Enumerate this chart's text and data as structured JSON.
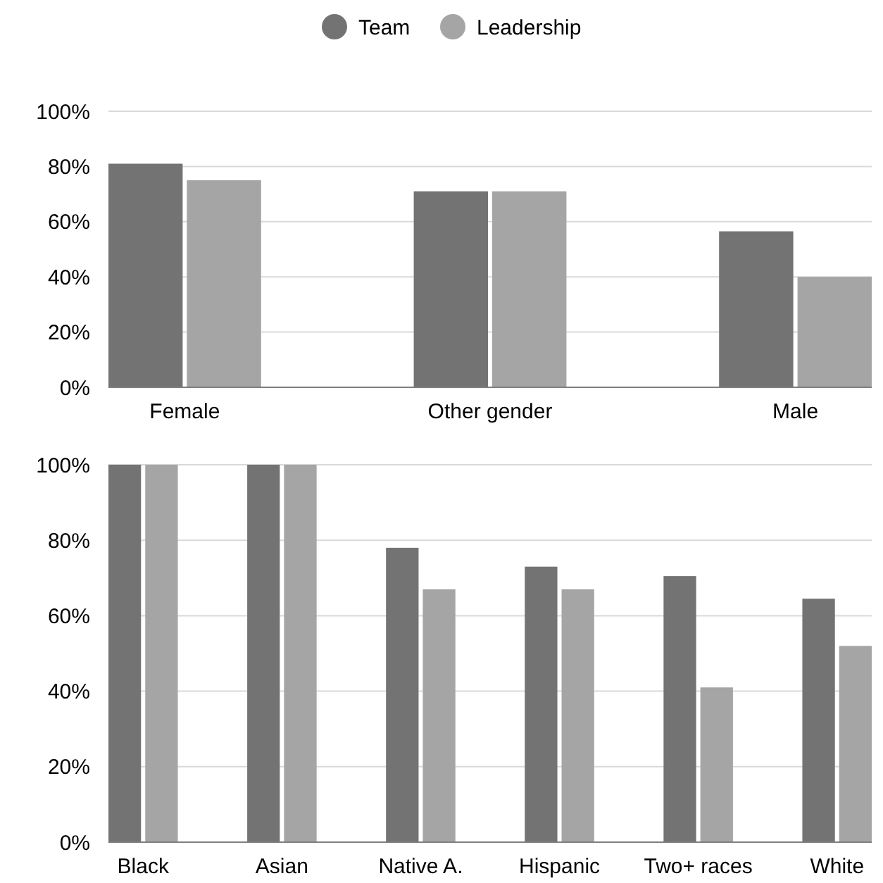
{
  "chart_data": [
    {
      "type": "bar",
      "categories": [
        "Female",
        "Other gender",
        "Male"
      ],
      "series": [
        {
          "name": "Team",
          "color": "#737373",
          "values": [
            81,
            71,
            56.5
          ]
        },
        {
          "name": "Leadership",
          "color": "#a5a5a5",
          "values": [
            75,
            71,
            40
          ]
        }
      ],
      "ylim": [
        0,
        100
      ],
      "yticks": [
        {
          "value": 0,
          "label": "0%"
        },
        {
          "value": 20,
          "label": "20%"
        },
        {
          "value": 40,
          "label": "40%"
        },
        {
          "value": 60,
          "label": "60%"
        },
        {
          "value": 80,
          "label": "80%"
        },
        {
          "value": 100,
          "label": "100%"
        }
      ],
      "grid": "y",
      "legend": "top"
    },
    {
      "type": "bar",
      "categories": [
        "Black",
        "Asian",
        "Native A.",
        "Hispanic",
        "Two+ races",
        "White"
      ],
      "series": [
        {
          "color": "#737373",
          "values": [
            100,
            100,
            78,
            73,
            70.5,
            64.5
          ]
        },
        {
          "color": "#a5a5a5",
          "values": [
            100,
            100,
            67,
            67,
            41,
            52
          ]
        }
      ],
      "ylim": [
        0,
        100
      ],
      "yticks": [
        {
          "value": 0,
          "label": "0%"
        },
        {
          "value": 20,
          "label": "20%"
        },
        {
          "value": 40,
          "label": "40%"
        },
        {
          "value": 60,
          "label": "60%"
        },
        {
          "value": 80,
          "label": "80%"
        },
        {
          "value": 100,
          "label": "100%"
        }
      ],
      "grid": "y",
      "legend": false
    }
  ]
}
